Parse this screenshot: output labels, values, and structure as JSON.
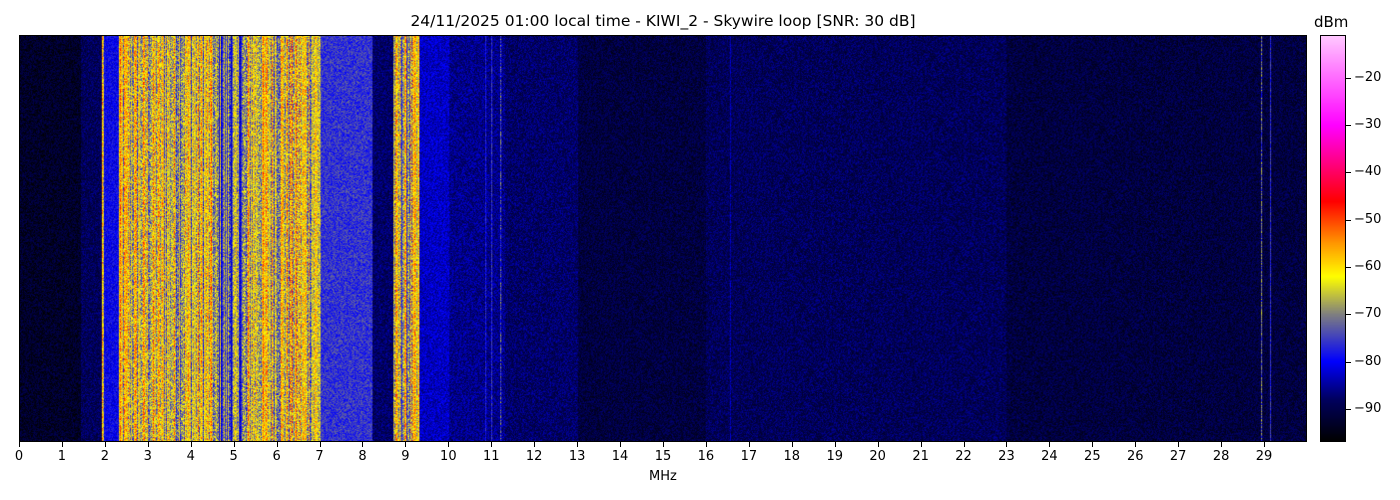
{
  "chart_data": {
    "type": "heatmap",
    "title": "24/11/2025 01:00 local time - KIWI_2 - Skywire loop [SNR: 30 dB]",
    "xlabel": "MHz",
    "xlim": [
      0,
      30
    ],
    "xticks": [
      0,
      1,
      2,
      3,
      4,
      5,
      6,
      7,
      8,
      9,
      10,
      11,
      12,
      13,
      14,
      15,
      16,
      17,
      18,
      19,
      20,
      21,
      22,
      23,
      24,
      25,
      26,
      27,
      28,
      29
    ],
    "colorbar": {
      "label": "dBm",
      "range": [
        -97,
        -11
      ],
      "ticks": [
        -20,
        -30,
        -40,
        -50,
        -60,
        -70,
        -80,
        -90
      ]
    },
    "colormap": [
      [
        "#000000",
        -97
      ],
      [
        "#000060",
        -88
      ],
      [
        "#0000ff",
        -80
      ],
      [
        "#808080",
        -70
      ],
      [
        "#ffff00",
        -62
      ],
      [
        "#ff9900",
        -55
      ],
      [
        "#ff0000",
        -46
      ],
      [
        "#ff00ff",
        -30
      ],
      [
        "#ffc8ff",
        -11
      ]
    ],
    "band_profile_dbm": [
      {
        "from": 0,
        "to": 1.4,
        "level": -93
      },
      {
        "from": 1.4,
        "to": 1.9,
        "level": -89
      },
      {
        "from": 1.9,
        "to": 1.95,
        "level": -60
      },
      {
        "from": 1.95,
        "to": 2.3,
        "level": -80
      },
      {
        "from": 2.3,
        "to": 4.5,
        "level": -64
      },
      {
        "from": 4.5,
        "to": 5.3,
        "level": -72
      },
      {
        "from": 5.3,
        "to": 7.0,
        "level": -63
      },
      {
        "from": 7.0,
        "to": 8.2,
        "level": -76
      },
      {
        "from": 8.2,
        "to": 8.7,
        "level": -88
      },
      {
        "from": 8.7,
        "to": 9.3,
        "level": -66
      },
      {
        "from": 9.3,
        "to": 10.0,
        "level": -83
      },
      {
        "from": 10.0,
        "to": 11.3,
        "level": -86
      },
      {
        "from": 11.3,
        "to": 13.0,
        "level": -88
      },
      {
        "from": 13.0,
        "to": 16.0,
        "level": -91
      },
      {
        "from": 16.0,
        "to": 23.0,
        "level": -89
      },
      {
        "from": 23.0,
        "to": 30.0,
        "level": -91
      }
    ],
    "narrow_lines_mhz": [
      {
        "f": 10.85,
        "level": -78
      },
      {
        "f": 11.0,
        "level": -76
      },
      {
        "f": 11.2,
        "level": -74
      },
      {
        "f": 16.55,
        "level": -84
      },
      {
        "f": 28.95,
        "level": -72
      },
      {
        "f": 29.15,
        "level": -76
      }
    ]
  }
}
